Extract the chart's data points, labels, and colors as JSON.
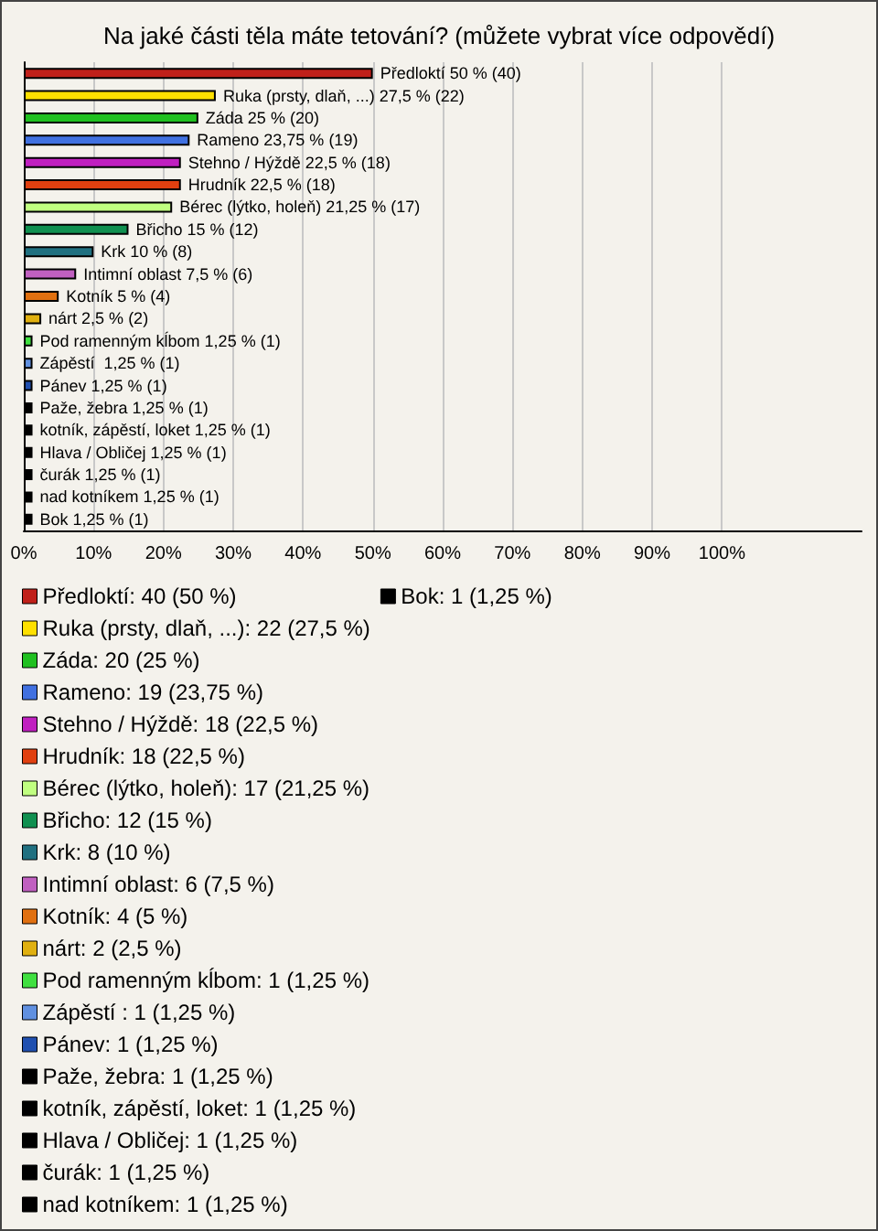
{
  "chart_data": {
    "type": "bar",
    "orientation": "horizontal",
    "stacked": true,
    "title": "Na jaké části těla máte tetování? (můžete vybrat více odpovědí)",
    "categories": [
      null,
      null,
      null,
      null,
      null,
      null,
      null,
      null,
      null,
      null,
      null,
      null,
      null,
      null,
      null,
      null,
      null,
      null,
      null,
      null,
      null
    ],
    "xlim": [
      0,
      120
    ],
    "xticks": [
      {
        "value": 0,
        "label": "0%"
      },
      {
        "value": 10,
        "label": "10%"
      },
      {
        "value": 20,
        "label": "20%"
      },
      {
        "value": 30,
        "label": "30%"
      },
      {
        "value": 40,
        "label": "40%"
      },
      {
        "value": 50,
        "label": "50%"
      },
      {
        "value": 60,
        "label": "60%"
      },
      {
        "value": 70,
        "label": "70%"
      },
      {
        "value": 80,
        "label": "80%"
      },
      {
        "value": 90,
        "label": "90%"
      },
      {
        "value": 100,
        "label": "100%"
      }
    ],
    "grid": "x",
    "legend": "bottom",
    "series": [
      {
        "name": "Předloktí: 40 (50 %)",
        "color": "#c0201a",
        "values": [
          50,
          null,
          null,
          null,
          null,
          null,
          null,
          null,
          null,
          null,
          null,
          null,
          null,
          null,
          null,
          null,
          null,
          null,
          null,
          null,
          null
        ],
        "value_labels": [
          "Předloktí 50 % (40)",
          null,
          null,
          null,
          null,
          null,
          null,
          null,
          null,
          null,
          null,
          null,
          null,
          null,
          null,
          null,
          null,
          null,
          null,
          null,
          null
        ]
      },
      {
        "name": "Ruka (prsty, dlaň, ...): 22 (27,5 %)",
        "color": "#ffe000",
        "values": [
          null,
          27.5,
          null,
          null,
          null,
          null,
          null,
          null,
          null,
          null,
          null,
          null,
          null,
          null,
          null,
          null,
          null,
          null,
          null,
          null,
          null
        ],
        "value_labels": [
          null,
          "Ruka (prsty, dlaň, ...) 27,5 % (22)",
          null,
          null,
          null,
          null,
          null,
          null,
          null,
          null,
          null,
          null,
          null,
          null,
          null,
          null,
          null,
          null,
          null,
          null,
          null
        ]
      },
      {
        "name": "Záda: 20 (25 %)",
        "color": "#20c020",
        "values": [
          null,
          null,
          25,
          null,
          null,
          null,
          null,
          null,
          null,
          null,
          null,
          null,
          null,
          null,
          null,
          null,
          null,
          null,
          null,
          null,
          null
        ],
        "value_labels": [
          null,
          null,
          "Záda 25 % (20)",
          null,
          null,
          null,
          null,
          null,
          null,
          null,
          null,
          null,
          null,
          null,
          null,
          null,
          null,
          null,
          null,
          null,
          null
        ]
      },
      {
        "name": "Rameno: 19 (23,75 %)",
        "color": "#4070e0",
        "values": [
          null,
          null,
          null,
          23.75,
          null,
          null,
          null,
          null,
          null,
          null,
          null,
          null,
          null,
          null,
          null,
          null,
          null,
          null,
          null,
          null,
          null
        ],
        "value_labels": [
          null,
          null,
          null,
          "Rameno 23,75 % (19)",
          null,
          null,
          null,
          null,
          null,
          null,
          null,
          null,
          null,
          null,
          null,
          null,
          null,
          null,
          null,
          null,
          null
        ]
      },
      {
        "name": "Stehno / Hýždě: 18 (22,5 %)",
        "color": "#c020c0",
        "values": [
          null,
          null,
          null,
          null,
          22.5,
          null,
          null,
          null,
          null,
          null,
          null,
          null,
          null,
          null,
          null,
          null,
          null,
          null,
          null,
          null,
          null
        ],
        "value_labels": [
          null,
          null,
          null,
          null,
          "Stehno / Hýždě 22,5 % (18)",
          null,
          null,
          null,
          null,
          null,
          null,
          null,
          null,
          null,
          null,
          null,
          null,
          null,
          null,
          null,
          null
        ]
      },
      {
        "name": "Hrudník: 18 (22,5 %)",
        "color": "#e04010",
        "values": [
          null,
          null,
          null,
          null,
          null,
          22.5,
          null,
          null,
          null,
          null,
          null,
          null,
          null,
          null,
          null,
          null,
          null,
          null,
          null,
          null,
          null
        ],
        "value_labels": [
          null,
          null,
          null,
          null,
          null,
          "Hrudník 22,5 % (18)",
          null,
          null,
          null,
          null,
          null,
          null,
          null,
          null,
          null,
          null,
          null,
          null,
          null,
          null,
          null
        ]
      },
      {
        "name": "Bérec (lýtko, holeň): 17 (21,25 %)",
        "color": "#c0ff80",
        "values": [
          null,
          null,
          null,
          null,
          null,
          null,
          21.25,
          null,
          null,
          null,
          null,
          null,
          null,
          null,
          null,
          null,
          null,
          null,
          null,
          null,
          null
        ],
        "value_labels": [
          null,
          null,
          null,
          null,
          null,
          null,
          "Bérec (lýtko, holeň) 21,25 % (17)",
          null,
          null,
          null,
          null,
          null,
          null,
          null,
          null,
          null,
          null,
          null,
          null,
          null,
          null
        ]
      },
      {
        "name": "Břicho: 12 (15 %)",
        "color": "#109050",
        "values": [
          null,
          null,
          null,
          null,
          null,
          null,
          null,
          15,
          null,
          null,
          null,
          null,
          null,
          null,
          null,
          null,
          null,
          null,
          null,
          null,
          null
        ],
        "value_labels": [
          null,
          null,
          null,
          null,
          null,
          null,
          null,
          "Břicho 15 % (12)",
          null,
          null,
          null,
          null,
          null,
          null,
          null,
          null,
          null,
          null,
          null,
          null,
          null
        ]
      },
      {
        "name": "Krk: 8 (10 %)",
        "color": "#207080",
        "values": [
          null,
          null,
          null,
          null,
          null,
          null,
          null,
          null,
          10,
          null,
          null,
          null,
          null,
          null,
          null,
          null,
          null,
          null,
          null,
          null,
          null
        ],
        "value_labels": [
          null,
          null,
          null,
          null,
          null,
          null,
          null,
          null,
          "Krk 10 % (8)",
          null,
          null,
          null,
          null,
          null,
          null,
          null,
          null,
          null,
          null,
          null,
          null
        ]
      },
      {
        "name": "Intimní oblast: 6 (7,5 %)",
        "color": "#c060c0",
        "values": [
          null,
          null,
          null,
          null,
          null,
          null,
          null,
          null,
          null,
          7.5,
          null,
          null,
          null,
          null,
          null,
          null,
          null,
          null,
          null,
          null,
          null
        ],
        "value_labels": [
          null,
          null,
          null,
          null,
          null,
          null,
          null,
          null,
          null,
          "Intimní oblast 7,5 % (6)",
          null,
          null,
          null,
          null,
          null,
          null,
          null,
          null,
          null,
          null,
          null
        ]
      },
      {
        "name": "Kotník: 4 (5 %)",
        "color": "#e07010",
        "values": [
          null,
          null,
          null,
          null,
          null,
          null,
          null,
          null,
          null,
          null,
          5,
          null,
          null,
          null,
          null,
          null,
          null,
          null,
          null,
          null,
          null
        ],
        "value_labels": [
          null,
          null,
          null,
          null,
          null,
          null,
          null,
          null,
          null,
          null,
          "Kotník 5 % (4)",
          null,
          null,
          null,
          null,
          null,
          null,
          null,
          null,
          null,
          null
        ]
      },
      {
        "name": "nárt: 2 (2,5 %)",
        "color": "#e0b010",
        "values": [
          null,
          null,
          null,
          null,
          null,
          null,
          null,
          null,
          null,
          null,
          null,
          2.5,
          null,
          null,
          null,
          null,
          null,
          null,
          null,
          null,
          null
        ],
        "value_labels": [
          null,
          null,
          null,
          null,
          null,
          null,
          null,
          null,
          null,
          null,
          null,
          "nárt 2,5 % (2)",
          null,
          null,
          null,
          null,
          null,
          null,
          null,
          null,
          null
        ]
      },
      {
        "name": "Pod ramenným kĺbom: 1 (1,25 %)",
        "color": "#40e040",
        "values": [
          null,
          null,
          null,
          null,
          null,
          null,
          null,
          null,
          null,
          null,
          null,
          null,
          1.25,
          null,
          null,
          null,
          null,
          null,
          null,
          null,
          null
        ],
        "value_labels": [
          null,
          null,
          null,
          null,
          null,
          null,
          null,
          null,
          null,
          null,
          null,
          null,
          "Pod ramenným kĺbom 1,25 % (1)",
          null,
          null,
          null,
          null,
          null,
          null,
          null,
          null
        ]
      },
      {
        "name": "Zápěstí : 1 (1,25 %)",
        "color": "#6090e0",
        "values": [
          null,
          null,
          null,
          null,
          null,
          null,
          null,
          null,
          null,
          null,
          null,
          null,
          null,
          1.25,
          null,
          null,
          null,
          null,
          null,
          null,
          null
        ],
        "value_labels": [
          null,
          null,
          null,
          null,
          null,
          null,
          null,
          null,
          null,
          null,
          null,
          null,
          null,
          "Zápěstí  1,25 % (1)",
          null,
          null,
          null,
          null,
          null,
          null,
          null
        ]
      },
      {
        "name": "Pánev: 1 (1,25 %)",
        "color": "#2050b0",
        "values": [
          null,
          null,
          null,
          null,
          null,
          null,
          null,
          null,
          null,
          null,
          null,
          null,
          null,
          null,
          1.25,
          null,
          null,
          null,
          null,
          null,
          null
        ],
        "value_labels": [
          null,
          null,
          null,
          null,
          null,
          null,
          null,
          null,
          null,
          null,
          null,
          null,
          null,
          null,
          "Pánev 1,25 % (1)",
          null,
          null,
          null,
          null,
          null,
          null
        ]
      },
      {
        "name": "Paže, žebra: 1 (1,25 %)",
        "color": "#000000",
        "values": [
          null,
          null,
          null,
          null,
          null,
          null,
          null,
          null,
          null,
          null,
          null,
          null,
          null,
          null,
          null,
          1.25,
          null,
          null,
          null,
          null,
          null
        ],
        "value_labels": [
          null,
          null,
          null,
          null,
          null,
          null,
          null,
          null,
          null,
          null,
          null,
          null,
          null,
          null,
          null,
          "Paže, žebra 1,25 % (1)",
          null,
          null,
          null,
          null,
          null
        ]
      },
      {
        "name": "kotník, zápěstí, loket: 1 (1,25 %)",
        "color": "#000000",
        "values": [
          null,
          null,
          null,
          null,
          null,
          null,
          null,
          null,
          null,
          null,
          null,
          null,
          null,
          null,
          null,
          null,
          1.25,
          null,
          null,
          null,
          null
        ],
        "value_labels": [
          null,
          null,
          null,
          null,
          null,
          null,
          null,
          null,
          null,
          null,
          null,
          null,
          null,
          null,
          null,
          null,
          "kotník, zápěstí, loket 1,25 % (1)",
          null,
          null,
          null,
          null
        ]
      },
      {
        "name": "Hlava / Obličej: 1 (1,25 %)",
        "color": "#000000",
        "values": [
          null,
          null,
          null,
          null,
          null,
          null,
          null,
          null,
          null,
          null,
          null,
          null,
          null,
          null,
          null,
          null,
          null,
          1.25,
          null,
          null,
          null
        ],
        "value_labels": [
          null,
          null,
          null,
          null,
          null,
          null,
          null,
          null,
          null,
          null,
          null,
          null,
          null,
          null,
          null,
          null,
          null,
          "Hlava / Obličej 1,25 % (1)",
          null,
          null,
          null
        ]
      },
      {
        "name": "čurák: 1 (1,25 %)",
        "color": "#000000",
        "values": [
          null,
          null,
          null,
          null,
          null,
          null,
          null,
          null,
          null,
          null,
          null,
          null,
          null,
          null,
          null,
          null,
          null,
          null,
          1.25,
          null,
          null
        ],
        "value_labels": [
          null,
          null,
          null,
          null,
          null,
          null,
          null,
          null,
          null,
          null,
          null,
          null,
          null,
          null,
          null,
          null,
          null,
          null,
          "čurák 1,25 % (1)",
          null,
          null
        ]
      },
      {
        "name": "nad kotníkem: 1 (1,25 %)",
        "color": "#000000",
        "values": [
          null,
          null,
          null,
          null,
          null,
          null,
          null,
          null,
          null,
          null,
          null,
          null,
          null,
          null,
          null,
          null,
          null,
          null,
          null,
          1.25,
          null
        ],
        "value_labels": [
          null,
          null,
          null,
          null,
          null,
          null,
          null,
          null,
          null,
          null,
          null,
          null,
          null,
          null,
          null,
          null,
          null,
          null,
          null,
          "nad kotníkem 1,25 % (1)",
          null
        ]
      },
      {
        "name": "Bok: 1 (1,25 %)",
        "color": "#000000",
        "values": [
          null,
          null,
          null,
          null,
          null,
          null,
          null,
          null,
          null,
          null,
          null,
          null,
          null,
          null,
          null,
          null,
          null,
          null,
          null,
          null,
          1.25
        ],
        "value_labels": [
          null,
          null,
          null,
          null,
          null,
          null,
          null,
          null,
          null,
          null,
          null,
          null,
          null,
          null,
          null,
          null,
          null,
          null,
          null,
          null,
          "Bok 1,25 % (1)"
        ]
      }
    ]
  }
}
